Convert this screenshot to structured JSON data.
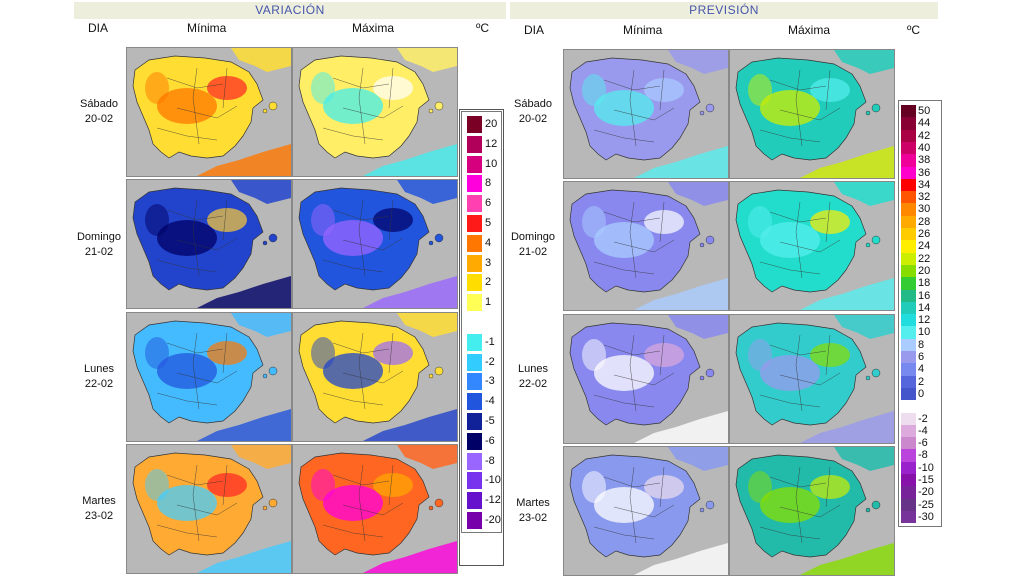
{
  "variacion": {
    "title": "VARIACIÓN",
    "col_dia": "DIA",
    "col_min": "Mínima",
    "col_max": "Máxima",
    "unit": "ºC"
  },
  "prevision": {
    "title": "PREVISIÓN",
    "col_dia": "DIA",
    "col_min": "Mínima",
    "col_max": "Máxima",
    "unit": "ºC"
  },
  "days": [
    {
      "name": "Sábado",
      "date": "20-02"
    },
    {
      "name": "Domingo",
      "date": "21-02"
    },
    {
      "name": "Lunes",
      "date": "22-02"
    },
    {
      "name": "Martes",
      "date": "23-02"
    }
  ],
  "legend_variacion": [
    {
      "label": "20",
      "color": "#7a0025"
    },
    {
      "label": "12",
      "color": "#b0005a"
    },
    {
      "label": "10",
      "color": "#d6007e"
    },
    {
      "label": "8",
      "color": "#ff00dd"
    },
    {
      "label": "6",
      "color": "#ff40b0"
    },
    {
      "label": "5",
      "color": "#ff1a1a"
    },
    {
      "label": "4",
      "color": "#ff7700"
    },
    {
      "label": "3",
      "color": "#ffaa00"
    },
    {
      "label": "2",
      "color": "#ffdd00"
    },
    {
      "label": "1",
      "color": "#ffff55"
    },
    {
      "label": "",
      "color": "#ffffff"
    },
    {
      "label": "-1",
      "color": "#44eeee"
    },
    {
      "label": "-2",
      "color": "#33ccff"
    },
    {
      "label": "-3",
      "color": "#3388ff"
    },
    {
      "label": "-4",
      "color": "#2255dd"
    },
    {
      "label": "-5",
      "color": "#112299"
    },
    {
      "label": "-6",
      "color": "#000066"
    },
    {
      "label": "-8",
      "color": "#9966ff"
    },
    {
      "label": "-10",
      "color": "#7733ee"
    },
    {
      "label": "-12",
      "color": "#6611cc"
    },
    {
      "label": "-20",
      "color": "#7700aa"
    }
  ],
  "legend_prevision": [
    {
      "label": "50",
      "color": "#660022"
    },
    {
      "label": "44",
      "color": "#880033"
    },
    {
      "label": "42",
      "color": "#aa0044"
    },
    {
      "label": "40",
      "color": "#cc0066"
    },
    {
      "label": "38",
      "color": "#ee0099"
    },
    {
      "label": "36",
      "color": "#ff00cc"
    },
    {
      "label": "34",
      "color": "#ff0000"
    },
    {
      "label": "32",
      "color": "#ff5500"
    },
    {
      "label": "30",
      "color": "#ff8800"
    },
    {
      "label": "28",
      "color": "#ffaa00"
    },
    {
      "label": "26",
      "color": "#ffcc00"
    },
    {
      "label": "24",
      "color": "#ffee00"
    },
    {
      "label": "22",
      "color": "#ccee00"
    },
    {
      "label": "20",
      "color": "#88dd00"
    },
    {
      "label": "18",
      "color": "#33cc33"
    },
    {
      "label": "16",
      "color": "#22bb88"
    },
    {
      "label": "14",
      "color": "#22ccbb"
    },
    {
      "label": "12",
      "color": "#22dddd"
    },
    {
      "label": "10",
      "color": "#55eeee"
    },
    {
      "label": "8",
      "color": "#aaccff"
    },
    {
      "label": "6",
      "color": "#9999ee"
    },
    {
      "label": "4",
      "color": "#7788ee"
    },
    {
      "label": "2",
      "color": "#5566dd"
    },
    {
      "label": "0",
      "color": "#4455cc"
    },
    {
      "label": "",
      "color": "#ffffff"
    },
    {
      "label": "-2",
      "color": "#eeddee"
    },
    {
      "label": "-4",
      "color": "#ddaadd"
    },
    {
      "label": "-6",
      "color": "#cc88cc"
    },
    {
      "label": "-8",
      "color": "#bb44dd"
    },
    {
      "label": "-10",
      "color": "#9922cc"
    },
    {
      "label": "-15",
      "color": "#8811aa"
    },
    {
      "label": "-20",
      "color": "#772299"
    },
    {
      "label": "-25",
      "color": "#663388"
    },
    {
      "label": "-30",
      "color": "#773399"
    }
  ],
  "maps": {
    "variacion_min": [
      {
        "fill": "#ffdd33",
        "accent": "#ff7700",
        "accent2": "#ff2222"
      },
      {
        "fill": "#2244cc",
        "accent": "#000066",
        "accent2": "#ffcc33"
      },
      {
        "fill": "#44bbff",
        "accent": "#2255dd",
        "accent2": "#ff7700"
      },
      {
        "fill": "#ffaa33",
        "accent": "#44ccff",
        "accent2": "#ff2222"
      }
    ],
    "variacion_max": [
      {
        "fill": "#ffee66",
        "accent": "#44eeee",
        "accent2": "#ffffff"
      },
      {
        "fill": "#2255dd",
        "accent": "#9966ff",
        "accent2": "#000066"
      },
      {
        "fill": "#ffdd33",
        "accent": "#2244cc",
        "accent2": "#9966ff"
      },
      {
        "fill": "#ff6622",
        "accent": "#ff00dd",
        "accent2": "#ffaa00"
      }
    ],
    "prevision_min": [
      {
        "fill": "#9999ee",
        "accent": "#55eeee",
        "accent2": "#aaccff"
      },
      {
        "fill": "#8888ee",
        "accent": "#aaccff",
        "accent2": "#ffffff"
      },
      {
        "fill": "#8888ee",
        "accent": "#ffffff",
        "accent2": "#ddaadd"
      },
      {
        "fill": "#8899ee",
        "accent": "#ffffff",
        "accent2": "#eeddee"
      }
    ],
    "prevision_max": [
      {
        "fill": "#22ccbb",
        "accent": "#ccee00",
        "accent2": "#55eeee"
      },
      {
        "fill": "#22ddcc",
        "accent": "#55eeee",
        "accent2": "#ffee00"
      },
      {
        "fill": "#33cccc",
        "accent": "#9999ee",
        "accent2": "#88dd00"
      },
      {
        "fill": "#22bbaa",
        "accent": "#88dd00",
        "accent2": "#ccee00"
      }
    ]
  }
}
